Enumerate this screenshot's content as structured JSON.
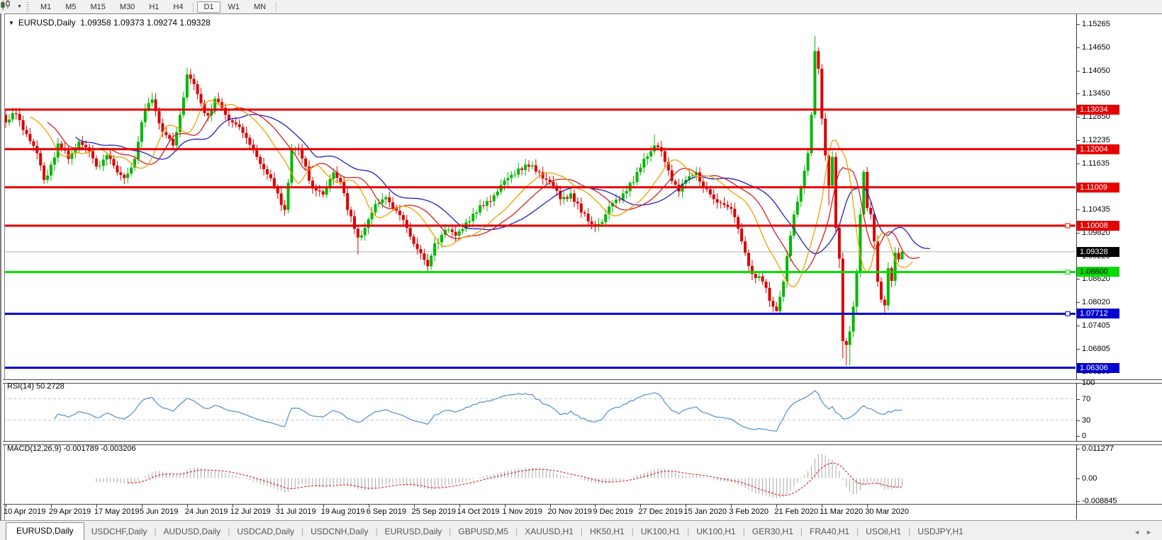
{
  "toolbar": {
    "timeframes": [
      "M1",
      "M5",
      "M15",
      "M30",
      "H1",
      "H4",
      "D1",
      "W1",
      "MN"
    ],
    "active": "D1",
    "chart_type_icon": "candlestick-chart-icon",
    "dropdown_icon": "chevron-down-icon"
  },
  "chart": {
    "title": "EURUSD,Daily",
    "ohlc": "1.09358 1.09373 1.09274 1.09328"
  },
  "indicators": {
    "rsi": {
      "label": "RSI(14) 50.2728"
    },
    "macd": {
      "label": "MACD(12,26,9) -0.001789 -0.003206"
    }
  },
  "tabs": {
    "active": 0,
    "items": [
      "EURUSD,Daily",
      "USDCHF,Daily",
      "AUDUSD,Daily",
      "USDCAD,Daily",
      "USDCNH,Daily",
      "EURUSD,Daily",
      "GBPUSD,M5",
      "XAUUSD,H1",
      "HK50,H1",
      "UK100,H1",
      "UK100,H1",
      "GER30,H1",
      "FRA40,H1",
      "USOil,H1",
      "USDJPY,H1"
    ],
    "scroll_left_icon": "◄",
    "scroll_right_icon": "►"
  },
  "chart_data": {
    "type": "candlestick",
    "symbol": "EURUSD",
    "timeframe": "Daily",
    "bar_count": 258,
    "price_ticks": [
      1.15265,
      1.1465,
      1.1405,
      1.1345,
      1.1285,
      1.12235,
      1.11635,
      1.10435,
      1.0982,
      1.0922,
      1.0862,
      1.0802,
      1.07405,
      1.06805,
      1.06205
    ],
    "current": {
      "price": 1.09328,
      "label": "1.09328",
      "bg": "#000000",
      "fg": "#ffffff",
      "line": "#b4b4b4"
    },
    "levels": [
      {
        "price": 1.13034,
        "label": "1.13034",
        "color": "#e60000",
        "text": "#ffffff",
        "handle": false
      },
      {
        "price": 1.12004,
        "label": "1.12004",
        "color": "#e60000",
        "text": "#ffffff",
        "handle": false
      },
      {
        "price": 1.11009,
        "label": "1.11009",
        "color": "#e60000",
        "text": "#ffffff",
        "handle": false
      },
      {
        "price": 1.10008,
        "label": "1.10008",
        "color": "#e60000",
        "text": "#ffffff",
        "handle": true
      },
      {
        "price": 1.088,
        "label": "1.08800",
        "color": "#00dd00",
        "text": "#000000",
        "handle": true
      },
      {
        "price": 1.07712,
        "label": "1.07712",
        "color": "#0000d2",
        "text": "#ffffff",
        "handle": true
      },
      {
        "price": 1.06306,
        "label": "1.06306",
        "color": "#0000d2",
        "text": "#ffffff",
        "handle": false
      }
    ],
    "dates": [
      "10 Apr 2019",
      "29 Apr 2019",
      "17 May 2019",
      "5 Jun 2019",
      "24 Jun 2019",
      "12 Jul 2019",
      "31 Jul 2019",
      "19 Aug 2019",
      "6 Sep 2019",
      "25 Sep 2019",
      "14 Oct 2019",
      "1 Nov 2019",
      "20 Nov 2019",
      "9 Dec 2019",
      "27 Dec 2019",
      "15 Jan 2020",
      "3 Feb 2020",
      "21 Feb 2020",
      "11 Mar 2020",
      "30 Mar 2020"
    ],
    "date_step_bars": 13,
    "colors": {
      "bull": "#00b800",
      "bear": "#dc0000",
      "alligator_jaw": "#2020c0",
      "alligator_teeth": "#d42020",
      "alligator_lips": "#f0a000",
      "rsi_line": "#4f8fd0",
      "rsi_grid": "#c8c8c8",
      "macd_hist": "#a8a8a8",
      "macd_signal": "#d42020"
    },
    "rsi": {
      "period": 14,
      "value": 50.2728,
      "axis": [
        "100",
        "70",
        "30",
        "0"
      ],
      "grid_levels": [
        70,
        30
      ]
    },
    "macd": {
      "fast": 12,
      "slow": 26,
      "signal": 9,
      "values": [
        -0.001789,
        -0.003206
      ],
      "axis": [
        {
          "label": "0.011277",
          "value": 0.011277
        },
        {
          "label": "0.00",
          "value": 0
        },
        {
          "label": "-0.008845",
          "value": -0.008845
        }
      ]
    },
    "alligator": {
      "jaw": [
        13,
        8
      ],
      "teeth": [
        8,
        5
      ],
      "lips": [
        5,
        3
      ]
    },
    "anchors": [
      [
        0,
        1.127
      ],
      [
        3,
        1.1292
      ],
      [
        6,
        1.124
      ],
      [
        9,
        1.119
      ],
      [
        11,
        1.112
      ],
      [
        13,
        1.116
      ],
      [
        15,
        1.1215
      ],
      [
        18,
        1.1175
      ],
      [
        21,
        1.122
      ],
      [
        24,
        1.1195
      ],
      [
        26,
        1.1155
      ],
      [
        29,
        1.1185
      ],
      [
        32,
        1.114
      ],
      [
        34,
        1.1125
      ],
      [
        37,
        1.1175
      ],
      [
        40,
        1.1305
      ],
      [
        42,
        1.133
      ],
      [
        45,
        1.1245
      ],
      [
        48,
        1.121
      ],
      [
        50,
        1.129
      ],
      [
        52,
        1.1395
      ],
      [
        54,
        1.137
      ],
      [
        56,
        1.132
      ],
      [
        58,
        1.1288
      ],
      [
        60,
        1.1332
      ],
      [
        63,
        1.129
      ],
      [
        66,
        1.1265
      ],
      [
        69,
        1.123
      ],
      [
        72,
        1.118
      ],
      [
        75,
        1.1135
      ],
      [
        78,
        1.1085
      ],
      [
        80,
        1.1042
      ],
      [
        82,
        1.1198
      ],
      [
        84,
        1.12
      ],
      [
        86,
        1.1155
      ],
      [
        88,
        1.1098
      ],
      [
        91,
        1.1082
      ],
      [
        94,
        1.114
      ],
      [
        96,
        1.1115
      ],
      [
        98,
        1.1042
      ],
      [
        101,
        1.097
      ],
      [
        103,
        1.0995
      ],
      [
        105,
        1.1035
      ],
      [
        107,
        1.106
      ],
      [
        109,
        1.1075
      ],
      [
        112,
        1.104
      ],
      [
        115,
        1.0995
      ],
      [
        118,
        1.094
      ],
      [
        121,
        1.0895
      ],
      [
        123,
        1.0955
      ],
      [
        126,
        1.099
      ],
      [
        129,
        1.0975
      ],
      [
        132,
        1.101
      ],
      [
        135,
        1.1035
      ],
      [
        138,
        1.1065
      ],
      [
        141,
        1.109
      ],
      [
        144,
        1.1125
      ],
      [
        147,
        1.115
      ],
      [
        150,
        1.1155
      ],
      [
        153,
        1.114
      ],
      [
        156,
        1.1115
      ],
      [
        159,
        1.107
      ],
      [
        162,
        1.1085
      ],
      [
        165,
        1.1035
      ],
      [
        168,
        1.1005
      ],
      [
        171,
        1.101
      ],
      [
        174,
        1.106
      ],
      [
        177,
        1.1085
      ],
      [
        180,
        1.1115
      ],
      [
        183,
        1.1175
      ],
      [
        186,
        1.121
      ],
      [
        188,
        1.1195
      ],
      [
        190,
        1.1145
      ],
      [
        193,
        1.109
      ],
      [
        196,
        1.113
      ],
      [
        198,
        1.114
      ],
      [
        200,
        1.11
      ],
      [
        203,
        1.107
      ],
      [
        206,
        1.1055
      ],
      [
        208,
        1.1045
      ],
      [
        211,
        1.096
      ],
      [
        214,
        1.0875
      ],
      [
        217,
        1.0855
      ],
      [
        219,
        1.0805
      ],
      [
        221,
        1.0778
      ],
      [
        223,
        1.0855
      ],
      [
        225,
        1.0975
      ],
      [
        226,
        1.103
      ],
      [
        228,
        1.11
      ],
      [
        230,
        1.119
      ],
      [
        231,
        1.129
      ],
      [
        232,
        1.1456
      ],
      [
        233,
        1.141
      ],
      [
        234,
        1.128
      ],
      [
        235,
        1.1184
      ],
      [
        236,
        1.1105
      ],
      [
        237,
        1.118
      ],
      [
        238,
        1.0995
      ],
      [
        239,
        1.0915
      ],
      [
        240,
        1.07
      ],
      [
        241,
        1.069
      ],
      [
        242,
        1.0725
      ],
      [
        243,
        1.079
      ],
      [
        244,
        1.088
      ],
      [
        245,
        1.103
      ],
      [
        246,
        1.1141
      ],
      [
        247,
        1.1047
      ],
      [
        248,
        1.1031
      ],
      [
        249,
        1.096
      ],
      [
        250,
        1.0855
      ],
      [
        251,
        1.0808
      ],
      [
        252,
        1.0793
      ],
      [
        253,
        1.089
      ],
      [
        254,
        1.0857
      ],
      [
        255,
        1.093
      ],
      [
        256,
        1.0913
      ],
      [
        257,
        1.09328
      ]
    ],
    "wicks": {
      "0": {
        "h": 1.1304
      },
      "3": {
        "h": 1.1307
      },
      "11": {
        "l": 1.111
      },
      "42": {
        "h": 1.1348
      },
      "52": {
        "h": 1.1412
      },
      "80": {
        "l": 1.1027
      },
      "101": {
        "l": 1.0926
      },
      "121": {
        "l": 1.0879
      },
      "186": {
        "h": 1.1239
      },
      "221": {
        "l": 1.0777
      },
      "232": {
        "h": 1.1495
      },
      "236": {
        "l": 1.1054
      },
      "239": {
        "l": 1.089
      },
      "240": {
        "l": 1.0655
      },
      "241": {
        "l": 1.0636
      },
      "242": {
        "l": 1.0637
      },
      "246": {
        "h": 1.1147
      },
      "252": {
        "l": 1.0768
      },
      "257": {
        "h": 1.09373,
        "l": 1.09274
      }
    }
  }
}
